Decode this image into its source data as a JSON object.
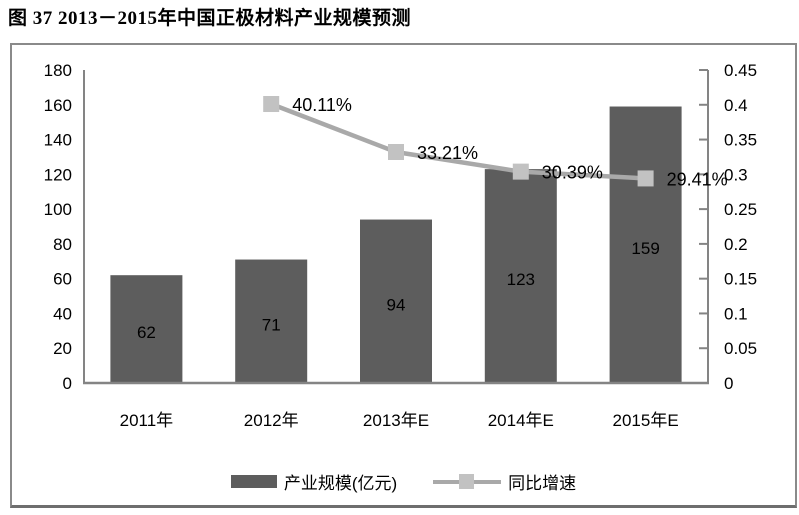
{
  "figure": {
    "title": "图 37 2013－2015年中国正极材料产业规模预测"
  },
  "chart_data": {
    "type": "bar",
    "combo": "bar+line",
    "title": "图 37 2013－2015年中国正极材料产业规模预测",
    "categories": [
      "2011年",
      "2012年",
      "2013年E",
      "2014年E",
      "2015年E"
    ],
    "series": [
      {
        "name": "产业规模(亿元)",
        "type": "bar",
        "axis": "left",
        "values": [
          62,
          71,
          94,
          123,
          159
        ],
        "labels": [
          "62",
          "71",
          "94",
          "123",
          "159"
        ]
      },
      {
        "name": "同比增速",
        "type": "line",
        "axis": "right",
        "values": [
          null,
          0.4011,
          0.3321,
          0.3039,
          0.2941
        ],
        "labels": [
          "",
          "40.11%",
          "33.21%",
          "30.39%",
          "29.41%"
        ]
      }
    ],
    "left_axis": {
      "min": 0,
      "max": 180,
      "step": 20,
      "tick_labels": [
        "180",
        "160",
        "140",
        "120",
        "100",
        "80",
        "60",
        "40",
        "20",
        "0"
      ]
    },
    "right_axis": {
      "min": 0,
      "max": 0.45,
      "step": 0.05,
      "tick_labels": [
        "0.45",
        "0.4",
        "0.35",
        "0.3",
        "0.25",
        "0.2",
        "0.15",
        "0.1",
        "0.05",
        "0"
      ]
    },
    "grid": false,
    "legend_position": "bottom",
    "colors": {
      "bar": "#5d5d5d",
      "line": "#a9a9a9",
      "marker": "#c2c2c2",
      "axis": "#848484",
      "border": "#8a8a8a",
      "text": "#000000"
    }
  },
  "legend": {
    "items": [
      {
        "label": "产业规模(亿元)",
        "swatch": "bar"
      },
      {
        "label": "同比增速",
        "swatch": "line-marker"
      }
    ]
  }
}
